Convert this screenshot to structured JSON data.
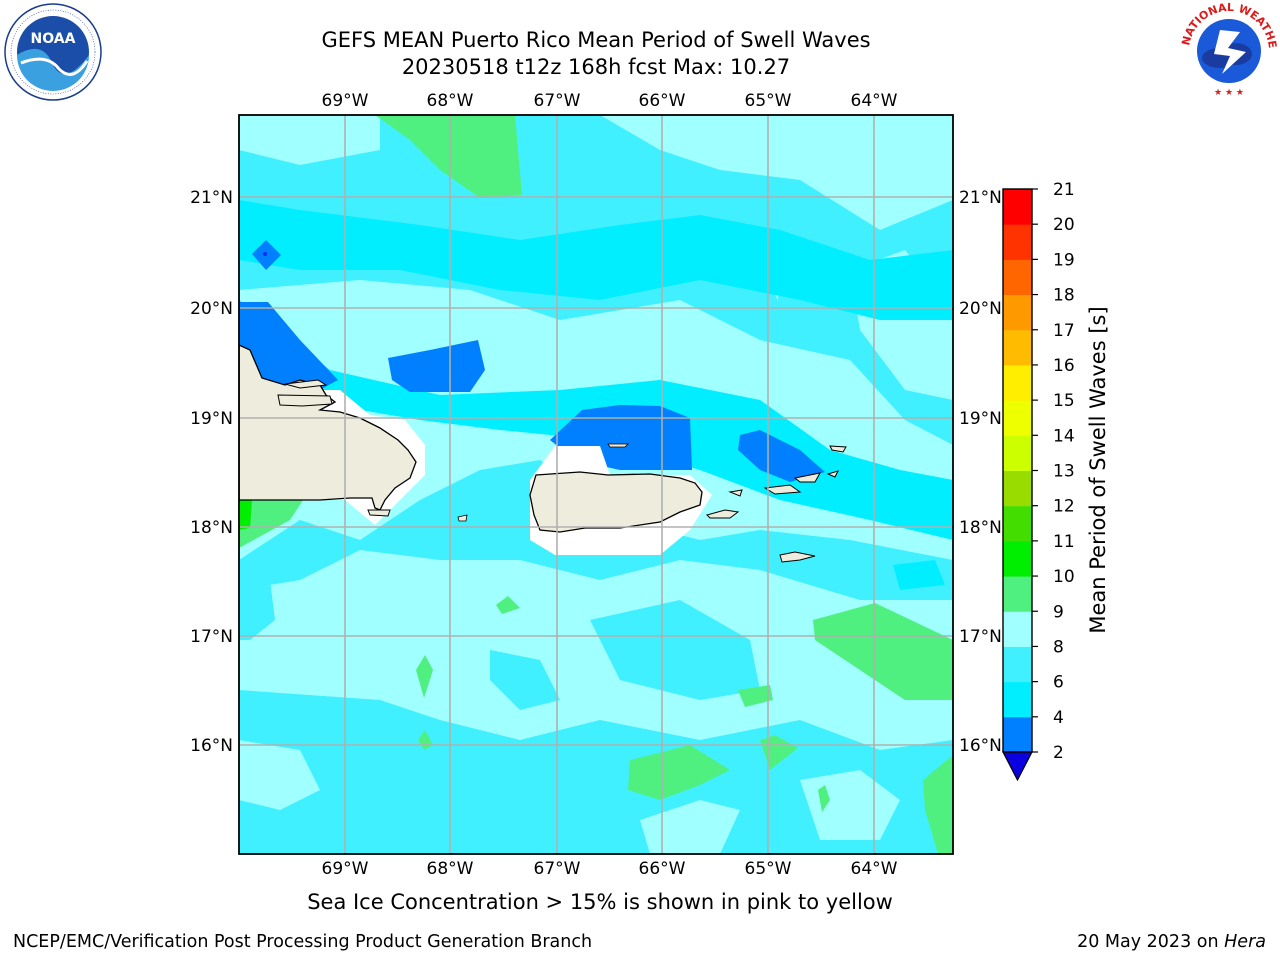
{
  "header": {
    "title_line1": "GEFS MEAN Puerto Rico Mean Period of Swell Waves",
    "title_line2": "20230518 t12z 168h fcst   Max: 10.27"
  },
  "map": {
    "lon_labels": [
      "69°W",
      "68°W",
      "67°W",
      "66°W",
      "65°W",
      "64°W"
    ],
    "lat_labels": [
      "21°N",
      "20°N",
      "19°N",
      "18°N",
      "17°N",
      "16°N"
    ],
    "land_color": "#eeecdc",
    "background_field_colors": [
      "#0080ff",
      "#00eeff",
      "#40f0ff",
      "#a0ffff",
      "#50f080"
    ]
  },
  "colorbar": {
    "label": "Mean Period of Swell Waves [s]",
    "ticks": [
      "2",
      "4",
      "6",
      "8",
      "9",
      "10",
      "11",
      "12",
      "13",
      "14",
      "15",
      "16",
      "17",
      "18",
      "19",
      "20",
      "21"
    ],
    "colors_bottom_to_top": [
      "#0a2cff",
      "#0080ff",
      "#00eeff",
      "#40f0ff",
      "#a0ffff",
      "#50f080",
      "#00ee00",
      "#44dd00",
      "#99dd00",
      "#ccff00",
      "#eeff00",
      "#ffee00",
      "#ffbb00",
      "#ff9900",
      "#ff6600",
      "#ff3300",
      "#ff0000"
    ],
    "under_color": "#0a00e0"
  },
  "footer": {
    "caption": "Sea Ice Concentration > 15% is shown in pink to yellow",
    "credit": "NCEP/EMC/Verification Post Processing Product Generation Branch",
    "date": "20 May 2023 on ",
    "machine": "Hera"
  },
  "logos": {
    "noaa_text": "NOAA",
    "nws_text": "NATIONAL WEATHER SERVICE"
  }
}
